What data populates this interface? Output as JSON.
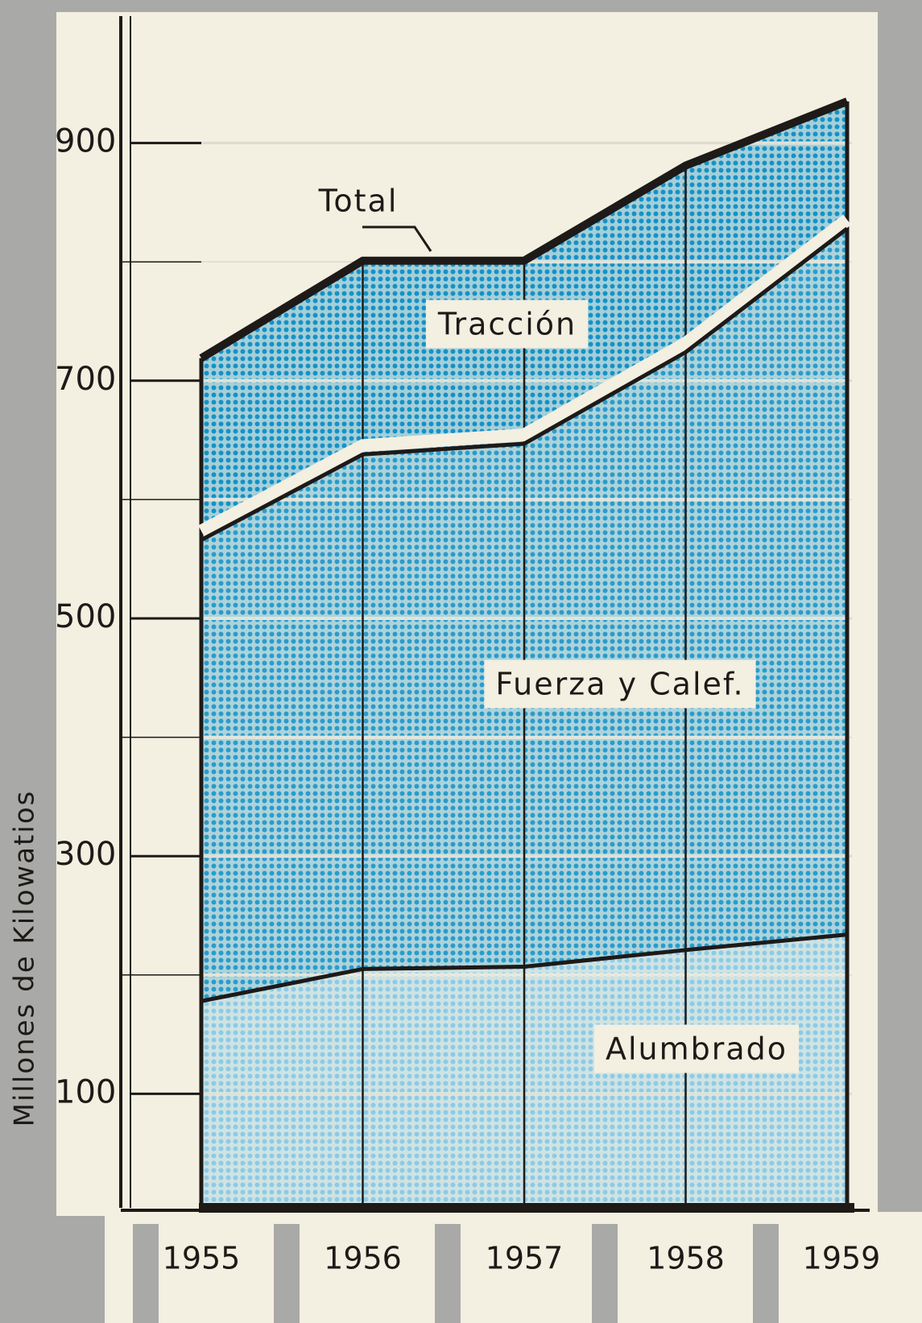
{
  "chart_data": {
    "type": "stacked_area",
    "y_label": "Millones de Kilowatios",
    "annotation": "Total",
    "categories": [
      "1955",
      "1956",
      "1957",
      "1958",
      "1959"
    ],
    "series": [
      {
        "name": "Alumbrado",
        "color": "#8ccbe6",
        "values": [
          178,
          205,
          207,
          221,
          234
        ]
      },
      {
        "name": "Fuerza y Calef.",
        "color": "#2a9ccd",
        "values": [
          388,
          433,
          440,
          503,
          594
        ]
      },
      {
        "name": "Tracción",
        "color": "#1592c8",
        "values": [
          153,
          163,
          154,
          157,
          107
        ]
      }
    ],
    "ylim": [
      0,
      1000
    ],
    "yticks": [
      100,
      300,
      500,
      700,
      900
    ],
    "minor_yticks": [
      200,
      400,
      600,
      800
    ],
    "grid": true
  }
}
